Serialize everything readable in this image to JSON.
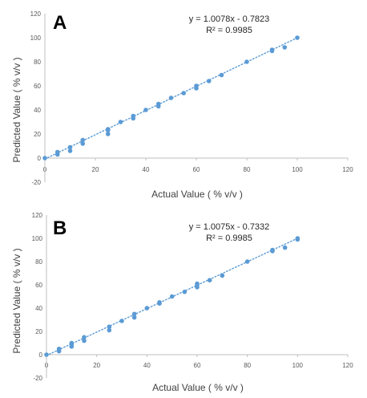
{
  "chart_data": [
    {
      "type": "scatter",
      "panel_label": "A",
      "xlabel": "Actual Value ( % v/v )",
      "ylabel": "Predicted Value ( % v/v )",
      "xlim": [
        0,
        120
      ],
      "ylim": [
        -20,
        120
      ],
      "x_ticks": [
        "0",
        "20",
        "40",
        "60",
        "80",
        "100",
        "120"
      ],
      "y_ticks": [
        "-20",
        "0",
        "20",
        "40",
        "60",
        "80",
        "100",
        "120"
      ],
      "grid": false,
      "trendline": {
        "style": "dotted",
        "slope": 1.0078,
        "intercept": -0.7823
      },
      "equation_text": "y = 1.0078x - 0.7823",
      "r2_text": "R² = 0.9985",
      "marker_color": "#5b9bd5",
      "points": [
        [
          0,
          0
        ],
        [
          5,
          3
        ],
        [
          5,
          5
        ],
        [
          10,
          6
        ],
        [
          10,
          9
        ],
        [
          15,
          12
        ],
        [
          15,
          15
        ],
        [
          25,
          20
        ],
        [
          25,
          23
        ],
        [
          25,
          24
        ],
        [
          30,
          30
        ],
        [
          35,
          33
        ],
        [
          35,
          35
        ],
        [
          40,
          40
        ],
        [
          45,
          43
        ],
        [
          45,
          45
        ],
        [
          50,
          50
        ],
        [
          55,
          54
        ],
        [
          60,
          58
        ],
        [
          60,
          60
        ],
        [
          65,
          64
        ],
        [
          70,
          69
        ],
        [
          80,
          80
        ],
        [
          90,
          89
        ],
        [
          90,
          90
        ],
        [
          95,
          92
        ],
        [
          100,
          100
        ]
      ]
    },
    {
      "type": "scatter",
      "panel_label": "B",
      "xlabel": "Actual Value ( % v/v )",
      "ylabel": "Predicted Value ( % v/v )",
      "xlim": [
        0,
        120
      ],
      "ylim": [
        -20,
        120
      ],
      "x_ticks": [
        "0",
        "20",
        "40",
        "60",
        "80",
        "100",
        "120"
      ],
      "y_ticks": [
        "-20",
        "0",
        "20",
        "40",
        "60",
        "80",
        "100",
        "120"
      ],
      "grid": false,
      "trendline": {
        "style": "dotted",
        "slope": 1.0075,
        "intercept": -0.7332
      },
      "equation_text": "y = 1.0075x - 0.7332",
      "r2_text": "R² = 0.9985",
      "marker_color": "#5b9bd5",
      "points": [
        [
          0,
          0
        ],
        [
          5,
          3
        ],
        [
          5,
          5
        ],
        [
          10,
          7
        ],
        [
          10,
          9
        ],
        [
          10,
          10
        ],
        [
          15,
          12
        ],
        [
          15,
          15
        ],
        [
          25,
          21
        ],
        [
          25,
          24
        ],
        [
          30,
          29
        ],
        [
          35,
          32
        ],
        [
          35,
          35
        ],
        [
          40,
          40
        ],
        [
          45,
          44
        ],
        [
          45,
          45
        ],
        [
          50,
          50
        ],
        [
          55,
          54
        ],
        [
          60,
          58
        ],
        [
          60,
          60
        ],
        [
          60,
          61
        ],
        [
          65,
          64
        ],
        [
          70,
          68
        ],
        [
          80,
          80
        ],
        [
          90,
          89
        ],
        [
          90,
          90
        ],
        [
          95,
          92
        ],
        [
          100,
          99
        ],
        [
          100,
          100
        ]
      ]
    }
  ]
}
